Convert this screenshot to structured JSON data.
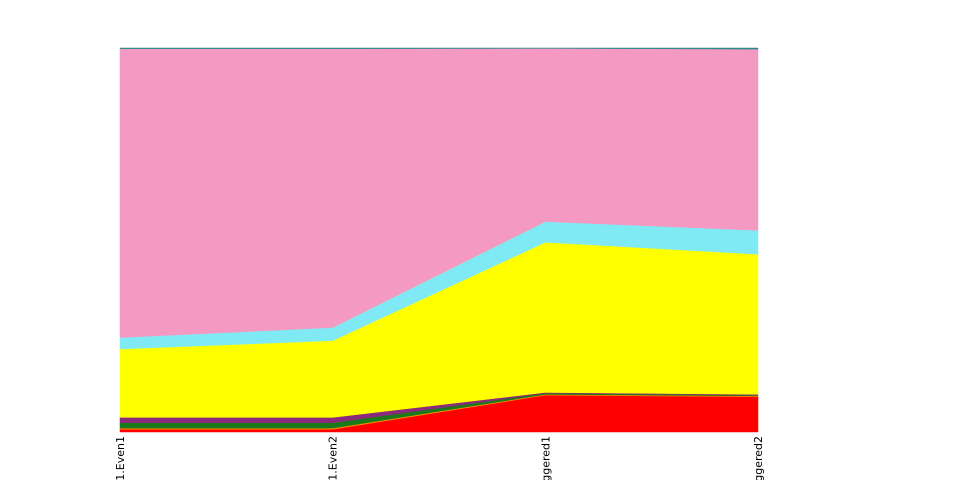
{
  "chart_data": {
    "type": "area",
    "stacked": true,
    "normalized": true,
    "categories": [
      "1.Even1",
      "1.Even2",
      "ggered1",
      "ggered2"
    ],
    "ylim": [
      0,
      1
    ],
    "grid": false,
    "legend": "none",
    "series": [
      {
        "color": "#ff0000",
        "values": [
          0.007,
          0.007,
          0.096,
          0.092
        ]
      },
      {
        "color": "#ff8c00",
        "values": [
          0.003,
          0.003,
          0.002,
          0.002
        ]
      },
      {
        "color": "#1a7a1a",
        "values": [
          0.014,
          0.014,
          0.003,
          0.002
        ]
      },
      {
        "color": "#8b2a7a",
        "values": [
          0.014,
          0.014,
          0.002,
          0.002
        ]
      },
      {
        "color": "#ffff00",
        "values": [
          0.178,
          0.2,
          0.391,
          0.365
        ]
      },
      {
        "color": "#80eaf4",
        "values": [
          0.03,
          0.034,
          0.054,
          0.062
        ]
      },
      {
        "color": "#f49ac2",
        "values": [
          0.752,
          0.726,
          0.451,
          0.472
        ]
      },
      {
        "color": "#2e8b8b",
        "values": [
          0.002,
          0.002,
          0.001,
          0.003
        ]
      }
    ]
  }
}
